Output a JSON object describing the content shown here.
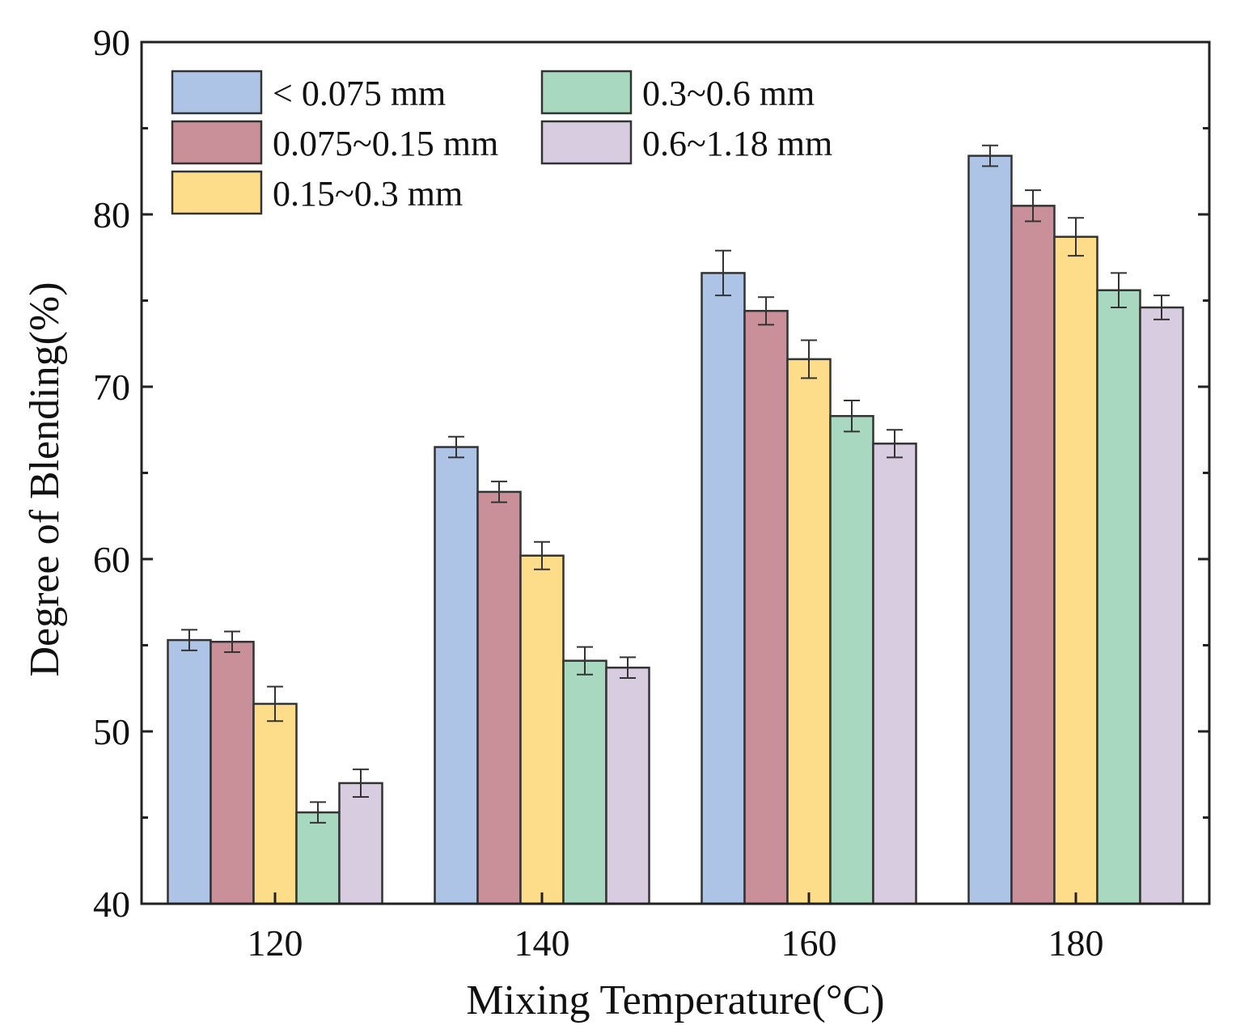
{
  "chart_data": {
    "type": "bar",
    "title": "",
    "xlabel": "Mixing Temperature(°C)",
    "ylabel": "Degree of Blending(%)",
    "categories": [
      "120",
      "140",
      "160",
      "180"
    ],
    "ylim": [
      40,
      90
    ],
    "yticks": [
      40,
      50,
      60,
      70,
      80,
      90
    ],
    "legend_position": "top-left",
    "grid": false,
    "series": [
      {
        "name": "< 0.075 mm",
        "color": "#aec4e6",
        "values": [
          55.3,
          66.5,
          76.6,
          83.4
        ],
        "errors": [
          0.6,
          0.6,
          1.3,
          0.6
        ]
      },
      {
        "name": "0.075~0.15 mm",
        "color": "#c9909a",
        "values": [
          55.2,
          63.9,
          74.4,
          80.5
        ],
        "errors": [
          0.6,
          0.6,
          0.8,
          0.9
        ]
      },
      {
        "name": "0.15~0.3 mm",
        "color": "#fddc8a",
        "values": [
          51.6,
          60.2,
          71.6,
          78.7
        ],
        "errors": [
          1.0,
          0.8,
          1.1,
          1.1
        ]
      },
      {
        "name": "0.3~0.6 mm",
        "color": "#a8d9c0",
        "values": [
          45.3,
          54.1,
          68.3,
          75.6
        ],
        "errors": [
          0.6,
          0.8,
          0.9,
          1.0
        ]
      },
      {
        "name": "0.6~1.18 mm",
        "color": "#d8cce0",
        "values": [
          47.0,
          53.7,
          66.7,
          74.6
        ],
        "errors": [
          0.8,
          0.6,
          0.8,
          0.7
        ]
      }
    ]
  }
}
